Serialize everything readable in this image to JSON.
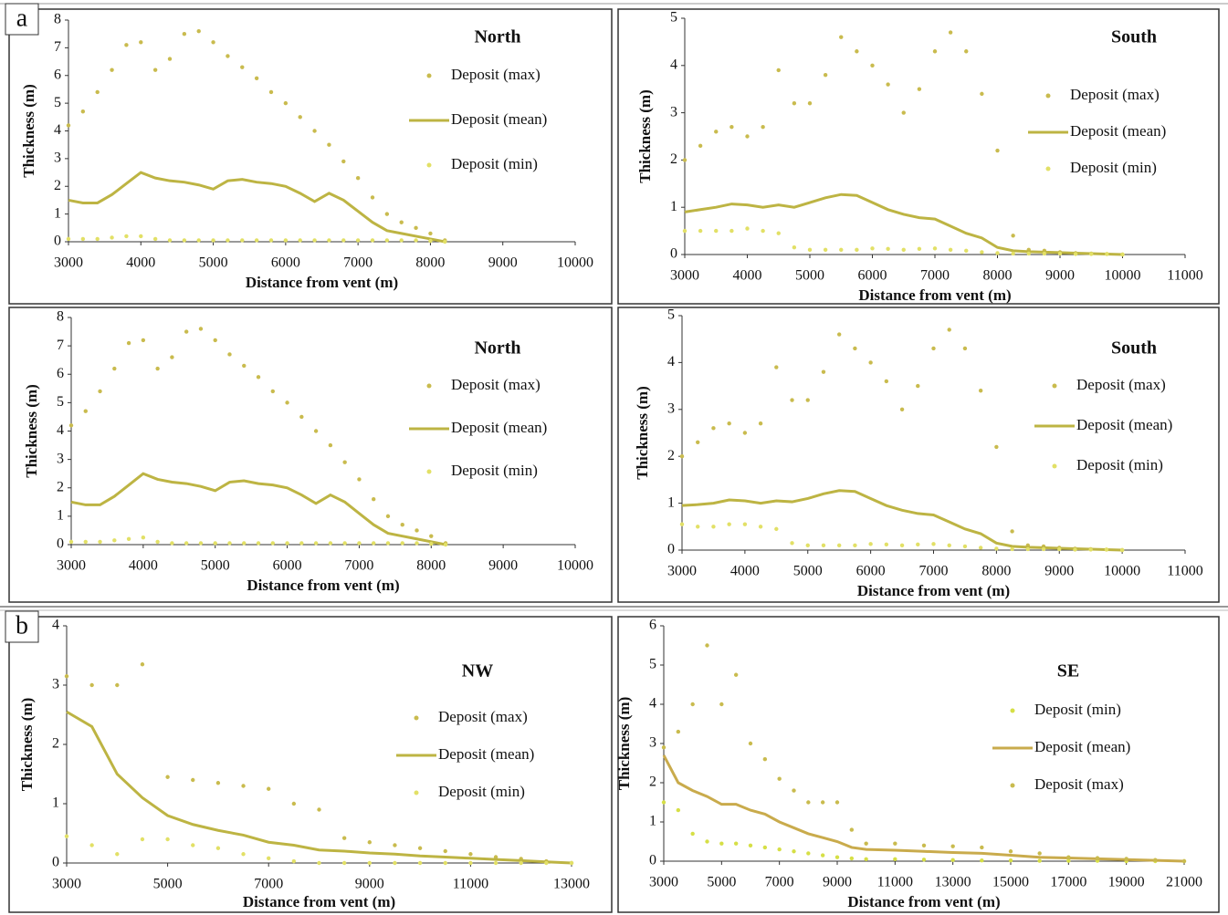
{
  "panel_labels": [
    "a",
    "b"
  ],
  "chart_data": [
    {
      "type": "line",
      "title": "North",
      "x_label": "Distance from  vent (m)",
      "y_label": "Thickness (m)",
      "x": [
        3000,
        3200,
        3400,
        3600,
        3800,
        4000,
        4200,
        4400,
        4600,
        4800,
        5000,
        5200,
        5400,
        5600,
        5800,
        6000,
        6200,
        6400,
        6600,
        6800,
        7000,
        7200,
        7400,
        7600,
        7800,
        8000,
        8200
      ],
      "series": [
        {
          "name": "Deposit (max)",
          "mode": "markers",
          "color": "#c9bb4e",
          "values": [
            4.2,
            4.7,
            5.4,
            6.2,
            7.1,
            7.2,
            6.2,
            6.6,
            7.5,
            7.6,
            7.2,
            6.7,
            6.3,
            5.9,
            5.4,
            5.0,
            4.5,
            4.0,
            3.5,
            2.9,
            2.3,
            1.6,
            1.0,
            0.7,
            0.5,
            0.3,
            0.05
          ]
        },
        {
          "name": "Deposit (mean)",
          "mode": "line",
          "color": "#bdb443",
          "values": [
            1.5,
            1.4,
            1.4,
            1.7,
            2.1,
            2.5,
            2.3,
            2.2,
            2.15,
            2.05,
            1.9,
            2.2,
            2.25,
            2.15,
            2.1,
            2.0,
            1.75,
            1.45,
            1.75,
            1.5,
            1.1,
            0.7,
            0.4,
            0.3,
            0.2,
            0.1,
            0
          ]
        },
        {
          "name": "Deposit (min)",
          "mode": "markers",
          "color": "#e2e066",
          "values": [
            0.1,
            0.1,
            0.1,
            0.15,
            0.2,
            0.2,
            0.1,
            0.05,
            0.05,
            0.05,
            0.05,
            0.05,
            0.05,
            0.05,
            0.05,
            0.05,
            0.05,
            0.05,
            0.05,
            0.05,
            0.05,
            0.05,
            0.05,
            0.05,
            0.05,
            0.03,
            0
          ]
        }
      ],
      "xlim": [
        3000,
        10000
      ],
      "xticks": [
        3000,
        4000,
        5000,
        6000,
        7000,
        8000,
        9000,
        10000
      ],
      "ylim": [
        0,
        8
      ],
      "yticks": [
        0,
        1,
        2,
        3,
        4,
        5,
        6,
        7,
        8
      ]
    },
    {
      "type": "line",
      "title": "South",
      "x_label": "Distance from  vent (m)",
      "y_label": "Thickness (m)",
      "x": [
        3000,
        3250,
        3500,
        3750,
        4000,
        4250,
        4500,
        4750,
        5000,
        5250,
        5500,
        5750,
        6000,
        6250,
        6500,
        6750,
        7000,
        7250,
        7500,
        7750,
        8000,
        8250,
        8500,
        8750,
        9000,
        9250,
        9500,
        9750,
        10000
      ],
      "series": [
        {
          "name": "Deposit (max)",
          "mode": "markers",
          "color": "#c9bb4e",
          "values": [
            2.0,
            2.3,
            2.6,
            2.7,
            2.5,
            2.7,
            3.9,
            3.2,
            3.2,
            3.8,
            4.6,
            4.3,
            4.0,
            3.6,
            3.0,
            3.5,
            4.3,
            4.7,
            4.3,
            3.4,
            2.2,
            0.4,
            0.1,
            0.08,
            0.05,
            0.03,
            0.02,
            0.01,
            0
          ]
        },
        {
          "name": "Deposit (mean)",
          "mode": "line",
          "color": "#bdb443",
          "values": [
            0.9,
            0.95,
            1.0,
            1.07,
            1.05,
            1.0,
            1.05,
            1.0,
            1.1,
            1.2,
            1.27,
            1.25,
            1.1,
            0.95,
            0.85,
            0.78,
            0.75,
            0.6,
            0.45,
            0.35,
            0.15,
            0.08,
            0.06,
            0.05,
            0.04,
            0.03,
            0.02,
            0.01,
            0
          ]
        },
        {
          "name": "Deposit (min)",
          "mode": "markers",
          "color": "#e2e066",
          "values": [
            0.5,
            0.5,
            0.5,
            0.5,
            0.55,
            0.5,
            0.45,
            0.15,
            0.1,
            0.1,
            0.1,
            0.1,
            0.13,
            0.12,
            0.1,
            0.12,
            0.13,
            0.1,
            0.08,
            0.05,
            0.03,
            0.02,
            0.02,
            0.02,
            0.02,
            0.01,
            0.01,
            0.01,
            0
          ]
        }
      ],
      "xlim": [
        3000,
        11000
      ],
      "xticks": [
        3000,
        4000,
        5000,
        6000,
        7000,
        8000,
        9000,
        10000,
        11000
      ],
      "ylim": [
        0,
        5
      ],
      "yticks": [
        0,
        1,
        2,
        3,
        4,
        5
      ]
    },
    {
      "type": "line",
      "title": "North",
      "x_label": "Distance from  vent (m)",
      "y_label": "Thickness (m)",
      "x": [
        3000,
        3200,
        3400,
        3600,
        3800,
        4000,
        4200,
        4400,
        4600,
        4800,
        5000,
        5200,
        5400,
        5600,
        5800,
        6000,
        6200,
        6400,
        6600,
        6800,
        7000,
        7200,
        7400,
        7600,
        7800,
        8000,
        8200
      ],
      "series": [
        {
          "name": "Deposit (max)",
          "mode": "markers",
          "color": "#c9bb4e",
          "values": [
            4.2,
            4.7,
            5.4,
            6.2,
            7.1,
            7.2,
            6.2,
            6.6,
            7.5,
            7.6,
            7.2,
            6.7,
            6.3,
            5.9,
            5.4,
            5.0,
            4.5,
            4.0,
            3.5,
            2.9,
            2.3,
            1.6,
            1.0,
            0.7,
            0.5,
            0.3,
            0.05
          ]
        },
        {
          "name": "Deposit (mean)",
          "mode": "line",
          "color": "#bdb443",
          "values": [
            1.5,
            1.4,
            1.4,
            1.7,
            2.1,
            2.5,
            2.3,
            2.2,
            2.15,
            2.05,
            1.9,
            2.2,
            2.25,
            2.15,
            2.1,
            2.0,
            1.75,
            1.45,
            1.75,
            1.5,
            1.1,
            0.7,
            0.4,
            0.3,
            0.2,
            0.1,
            0
          ]
        },
        {
          "name": "Deposit (min)",
          "mode": "markers",
          "color": "#e2e066",
          "values": [
            0.1,
            0.1,
            0.1,
            0.15,
            0.2,
            0.25,
            0.1,
            0.05,
            0.05,
            0.05,
            0.05,
            0.05,
            0.05,
            0.05,
            0.05,
            0.05,
            0.05,
            0.05,
            0.05,
            0.05,
            0.05,
            0.05,
            0.05,
            0.05,
            0.05,
            0.03,
            0
          ]
        }
      ],
      "xlim": [
        3000,
        10000
      ],
      "xticks": [
        3000,
        4000,
        5000,
        6000,
        7000,
        8000,
        9000,
        10000
      ],
      "ylim": [
        0,
        8
      ],
      "yticks": [
        0,
        1,
        2,
        3,
        4,
        5,
        6,
        7,
        8
      ]
    },
    {
      "type": "line",
      "title": "South",
      "x_label": "Distance from  vent (m)",
      "y_label": "Thickness (m)",
      "x": [
        3000,
        3250,
        3500,
        3750,
        4000,
        4250,
        4500,
        4750,
        5000,
        5250,
        5500,
        5750,
        6000,
        6250,
        6500,
        6750,
        7000,
        7250,
        7500,
        7750,
        8000,
        8250,
        8500,
        8750,
        9000,
        9250,
        9500,
        9750,
        10000
      ],
      "series": [
        {
          "name": "Deposit (max)",
          "mode": "markers",
          "color": "#c9bb4e",
          "values": [
            2.0,
            2.3,
            2.6,
            2.7,
            2.5,
            2.7,
            3.9,
            3.2,
            3.2,
            3.8,
            4.6,
            4.3,
            4.0,
            3.6,
            3.0,
            3.5,
            4.3,
            4.7,
            4.3,
            3.4,
            2.2,
            0.4,
            0.1,
            0.08,
            0.05,
            0.03,
            0.02,
            0.01,
            0
          ]
        },
        {
          "name": "Deposit (mean)",
          "mode": "line",
          "color": "#bdb443",
          "values": [
            0.95,
            0.97,
            1.0,
            1.07,
            1.05,
            1.0,
            1.05,
            1.03,
            1.1,
            1.2,
            1.27,
            1.25,
            1.1,
            0.95,
            0.85,
            0.78,
            0.75,
            0.6,
            0.45,
            0.35,
            0.15,
            0.08,
            0.06,
            0.05,
            0.04,
            0.03,
            0.02,
            0.01,
            0
          ]
        },
        {
          "name": "Deposit (min)",
          "mode": "markers",
          "color": "#e2e066",
          "values": [
            0.55,
            0.5,
            0.5,
            0.55,
            0.55,
            0.5,
            0.45,
            0.15,
            0.1,
            0.1,
            0.1,
            0.1,
            0.13,
            0.12,
            0.1,
            0.12,
            0.13,
            0.1,
            0.08,
            0.05,
            0.03,
            0.02,
            0.02,
            0.02,
            0.02,
            0.01,
            0.01,
            0.01,
            0
          ]
        }
      ],
      "xlim": [
        3000,
        11000
      ],
      "xticks": [
        3000,
        4000,
        5000,
        6000,
        7000,
        8000,
        9000,
        10000,
        11000
      ],
      "ylim": [
        0,
        5
      ],
      "yticks": [
        0,
        1,
        2,
        3,
        4,
        5
      ]
    },
    {
      "type": "line",
      "title": "NW",
      "x_label": "Distance from  vent (m)",
      "y_label": "Thickness (m)",
      "x": [
        3000,
        3500,
        4000,
        4500,
        5000,
        5500,
        6000,
        6500,
        7000,
        7500,
        8000,
        8500,
        9000,
        9500,
        10000,
        10500,
        11000,
        11500,
        12000,
        12500,
        13000
      ],
      "series": [
        {
          "name": "Deposit (max)",
          "mode": "markers",
          "color": "#c9bb4e",
          "values": [
            3.15,
            3.0,
            3.0,
            3.35,
            1.45,
            1.4,
            1.35,
            1.3,
            1.25,
            1.0,
            0.9,
            0.42,
            0.35,
            0.3,
            0.25,
            0.2,
            0.15,
            0.1,
            0.07,
            0.03,
            0
          ]
        },
        {
          "name": "Deposit (mean)",
          "mode": "line",
          "color": "#bdb443",
          "values": [
            2.55,
            2.3,
            1.5,
            1.1,
            0.8,
            0.65,
            0.55,
            0.47,
            0.35,
            0.3,
            0.22,
            0.2,
            0.17,
            0.15,
            0.12,
            0.1,
            0.08,
            0.06,
            0.04,
            0.02,
            0
          ]
        },
        {
          "name": "Deposit (min)",
          "mode": "markers",
          "color": "#e2e066",
          "values": [
            0.45,
            0.3,
            0.15,
            0.4,
            0.4,
            0.3,
            0.25,
            0.15,
            0.08,
            0.03,
            0,
            0,
            0,
            0,
            0,
            0,
            0,
            0,
            0,
            0,
            0
          ]
        }
      ],
      "xlim": [
        3000,
        13000
      ],
      "xticks": [
        3000,
        5000,
        7000,
        9000,
        11000,
        13000
      ],
      "ylim": [
        0,
        4
      ],
      "yticks": [
        0,
        1,
        2,
        3,
        4
      ]
    },
    {
      "type": "line",
      "title": "SE",
      "x_label": "Distance from  vent (m)",
      "y_label": "Thickness (m)",
      "x": [
        3000,
        3500,
        4000,
        4500,
        5000,
        5500,
        6000,
        6500,
        7000,
        7500,
        8000,
        8500,
        9000,
        9500,
        10000,
        11000,
        12000,
        13000,
        14000,
        15000,
        16000,
        17000,
        18000,
        19000,
        20000,
        21000
      ],
      "series": [
        {
          "name": "Deposit (min)",
          "mode": "markers",
          "color": "#d6df46",
          "values": [
            1.5,
            1.3,
            0.7,
            0.5,
            0.45,
            0.45,
            0.4,
            0.35,
            0.3,
            0.25,
            0.2,
            0.15,
            0.1,
            0.07,
            0.05,
            0.05,
            0.04,
            0.03,
            0.02,
            0.02,
            0.01,
            0.01,
            0.01,
            0,
            0,
            0
          ]
        },
        {
          "name": "Deposit (mean)",
          "mode": "line",
          "color": "#c9ab4c",
          "values": [
            2.7,
            2.0,
            1.8,
            1.65,
            1.45,
            1.45,
            1.3,
            1.2,
            1.0,
            0.85,
            0.7,
            0.6,
            0.5,
            0.35,
            0.3,
            0.28,
            0.25,
            0.22,
            0.2,
            0.15,
            0.1,
            0.08,
            0.06,
            0.04,
            0.02,
            0
          ]
        },
        {
          "name": "Deposit (max)",
          "mode": "markers",
          "color": "#c9bb4e",
          "values": [
            2.9,
            3.3,
            4.0,
            5.5,
            4.0,
            4.75,
            3.0,
            2.6,
            2.1,
            1.8,
            1.5,
            1.5,
            1.5,
            0.8,
            0.45,
            0.45,
            0.4,
            0.38,
            0.35,
            0.25,
            0.2,
            0.1,
            0.08,
            0.06,
            0.03,
            0
          ]
        }
      ],
      "xlim": [
        3000,
        21000
      ],
      "xticks": [
        3000,
        5000,
        7000,
        9000,
        11000,
        13000,
        15000,
        17000,
        19000,
        21000
      ],
      "ylim": [
        0,
        6
      ],
      "yticks": [
        0,
        1,
        2,
        3,
        4,
        5,
        6
      ]
    }
  ]
}
